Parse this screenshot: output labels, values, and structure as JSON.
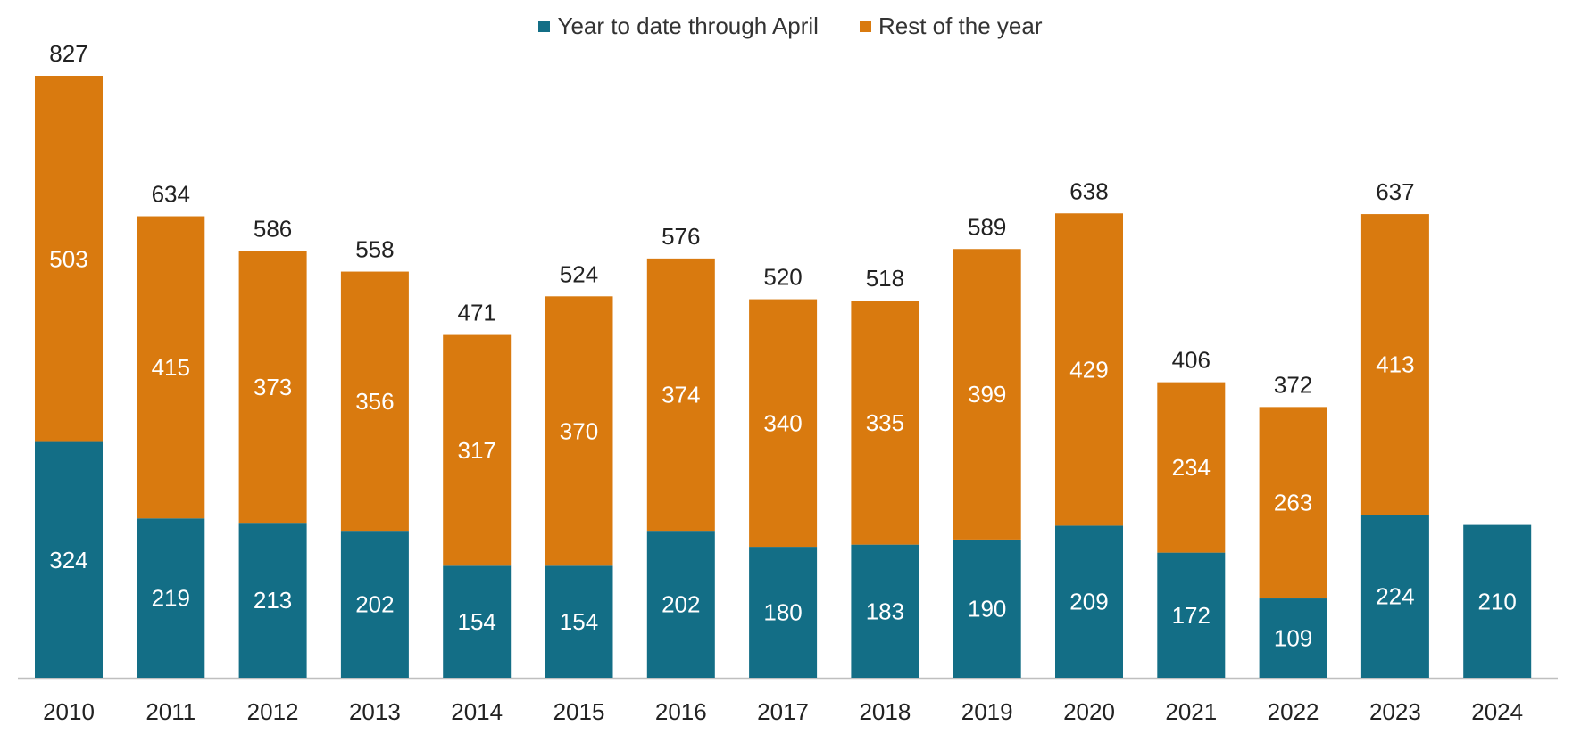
{
  "chart_data": {
    "type": "bar",
    "stacked": true,
    "categories": [
      "2010",
      "2011",
      "2012",
      "2013",
      "2014",
      "2015",
      "2016",
      "2017",
      "2018",
      "2019",
      "2020",
      "2021",
      "2022",
      "2023",
      "2024"
    ],
    "series": [
      {
        "name": "Year to date through April",
        "color": "#136E86",
        "values": [
          324,
          219,
          213,
          202,
          154,
          154,
          202,
          180,
          183,
          190,
          209,
          172,
          109,
          224,
          210
        ]
      },
      {
        "name": "Rest of the year",
        "color": "#D97A0F",
        "values": [
          503,
          415,
          373,
          356,
          317,
          370,
          374,
          340,
          335,
          399,
          429,
          234,
          263,
          413,
          null
        ]
      }
    ],
    "totals": [
      827,
      634,
      586,
      558,
      471,
      524,
      576,
      520,
      518,
      589,
      638,
      406,
      372,
      637,
      null
    ],
    "ylim": [
      0,
      827
    ],
    "legend_position": "top-center",
    "grid": false
  }
}
